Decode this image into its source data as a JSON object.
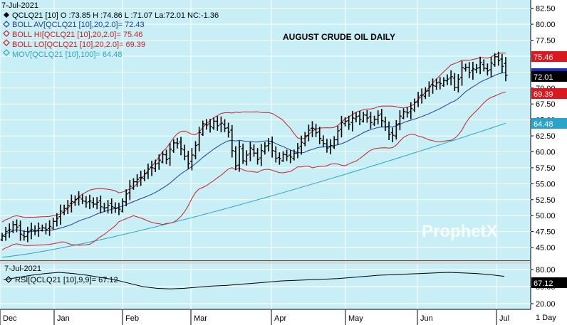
{
  "header": {
    "date": "7-Jul-2021",
    "quote": "QCLQ21 [10] O :73.85 H :74.86 L :71.07 La:72.01 NC:-1.36",
    "boll_av": "BOLL AV[QCLQ21 [10],20,2.0]= 72.43",
    "boll_hi": "BOLL HI[QCLQ21 [10],20,2.0]= 75.46",
    "boll_lo": "BOLL LO[QCLQ21 [10],20,2.0]= 69.39",
    "mov": "MOV[QCLQ21 [10],100]= 64.48"
  },
  "title": "AUGUST CRUDE OIL DAILY",
  "watermark": "ProphetX",
  "lower": {
    "date": "7-Jul-2021",
    "rsi_label": "RSI[QCLQ21 [10],9,9]= 67.12",
    "rsi_value": "67.12"
  },
  "interval": "1 Day",
  "tags": {
    "boll_hi": "75.46",
    "last": "72.01",
    "boll_lo": "69.39",
    "mov": "64.48"
  },
  "colors": {
    "background": "#ffffff",
    "plot_bg": "#c8eef6",
    "grid": "#ffffff",
    "price": "#000000",
    "boll_av": "#1a3fa0",
    "boll_band": "#cc1f1f",
    "mov": "#2aa3c9",
    "rsi": "#000000"
  },
  "chart_data": [
    {
      "type": "ohlc",
      "title": "AUGUST CRUDE OIL DAILY",
      "x_months": [
        "Dec",
        "Jan",
        "Feb",
        "Mar",
        "Apr",
        "May",
        "Jun",
        "Jul"
      ],
      "y_ticks": [
        "82.50",
        "80.00",
        "77.50",
        "75.00",
        "72.50",
        "70.00",
        "67.50",
        "65.00",
        "62.50",
        "60.00",
        "57.50",
        "55.00",
        "52.50",
        "50.00",
        "47.50",
        "45.00"
      ],
      "ylim": [
        43.0,
        83.8
      ],
      "grid": true,
      "bar_closes": [
        46.8,
        47.5,
        47.8,
        48.6,
        48.2,
        47.1,
        46.7,
        47.4,
        47.8,
        47.6,
        48.0,
        48.1,
        47.8,
        48.3,
        49.1,
        49.6,
        50.7,
        51.1,
        51.6,
        52.2,
        52.5,
        52.9,
        52.3,
        52.0,
        52.3,
        51.8,
        52.1,
        51.4,
        51.2,
        51.6,
        51.4,
        51.1,
        51.0,
        52.2,
        53.4,
        54.6,
        55.3,
        55.7,
        56.0,
        56.6,
        57.3,
        57.5,
        58.1,
        58.7,
        59.6,
        58.8,
        60.4,
        61.4,
        61.3,
        60.5,
        59.3,
        58.2,
        59.5,
        61.0,
        63.0,
        64.4,
        64.2,
        64.0,
        64.8,
        64.1,
        64.5,
        63.7,
        63.1,
        60.2,
        57.8,
        60.8,
        58.6,
        59.5,
        60.6,
        59.8,
        58.8,
        60.2,
        60.9,
        61.3,
        60.2,
        59.0,
        58.9,
        59.6,
        59.3,
        59.2,
        59.8,
        60.6,
        61.5,
        62.5,
        63.4,
        63.7,
        63.0,
        62.1,
        61.3,
        60.6,
        61.0,
        61.9,
        63.3,
        64.6,
        64.8,
        64.3,
        65.3,
        65.5,
        65.1,
        65.8,
        65.3,
        64.6,
        65.1,
        65.7,
        64.9,
        63.9,
        62.7,
        62.6,
        64.3,
        65.6,
        66.3,
        66.1,
        66.8,
        67.8,
        68.6,
        68.9,
        69.5,
        70.2,
        70.4,
        70.8,
        70.7,
        71.2,
        71.4,
        71.8,
        70.1,
        71.4,
        73.2,
        73.2,
        72.4,
        73.0,
        73.1,
        74.0,
        73.1,
        72.7,
        73.9,
        74.9,
        74.3,
        73.4,
        72.0
      ],
      "series": [
        {
          "name": "BOLL AV[QCLQ21 [10],20,2.0]",
          "last": 72.43
        },
        {
          "name": "BOLL HI[QCLQ21 [10],20,2.0]",
          "last": 75.46
        },
        {
          "name": "BOLL LO[QCLQ21 [10],20,2.0]",
          "last": 69.39
        },
        {
          "name": "MOV[QCLQ21 [10],100]",
          "last": 64.48
        }
      ],
      "last": {
        "open": 73.85,
        "high": 74.86,
        "low": 71.07,
        "close": 72.01,
        "net_change": -1.36
      }
    },
    {
      "type": "line",
      "series": [
        {
          "name": "RSI[QCLQ21 [10],9,9]",
          "last": 67.12
        }
      ],
      "y_ticks": [
        "80.00",
        "50.00",
        "20.00"
      ],
      "ylim": [
        10,
        90
      ],
      "rsi_values": [
        62,
        66,
        70,
        73,
        75,
        73,
        70,
        66,
        62,
        56,
        50,
        47,
        46,
        47,
        49,
        51,
        52,
        54,
        56,
        58,
        60,
        61,
        62,
        63,
        64,
        66,
        68,
        70,
        71,
        72,
        73,
        74,
        75,
        74,
        73,
        71,
        68
      ]
    }
  ]
}
